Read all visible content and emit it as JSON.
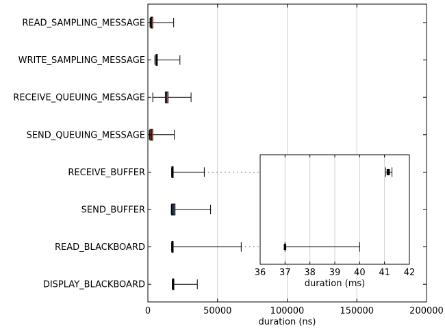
{
  "chart_data": [
    {
      "type": "box",
      "xlabel": "duration (ns)",
      "xlim": [
        0,
        200000
      ],
      "xticks": [
        0,
        50000,
        100000,
        150000,
        200000
      ],
      "grid": "vertical",
      "categories": [
        "READ_SAMPLING_MESSAGE",
        "WRITE_SAMPLING_MESSAGE",
        "RECEIVE_QUEUING_MESSAGE",
        "SEND_QUEUING_MESSAGE",
        "RECEIVE_BUFFER",
        "SEND_BUFFER",
        "READ_BLACKBOARD",
        "DISPLAY_BLACKBOARD"
      ],
      "boxes": [
        {
          "label": "READ_SAMPLING_MESSAGE",
          "whislo": 1500,
          "q1": 2000,
          "med": 2500,
          "q3": 3500,
          "whishi": 18500,
          "color": "#e3775f"
        },
        {
          "label": "WRITE_SAMPLING_MESSAGE",
          "whislo": 5000,
          "q1": 5800,
          "med": 6300,
          "q3": 6800,
          "whishi": 23000,
          "color": "#e3775f"
        },
        {
          "label": "RECEIVE_QUEUING_MESSAGE",
          "whislo": 3500,
          "q1": 12500,
          "med": 13500,
          "q3": 14500,
          "whishi": 31000,
          "color": "#e3775f"
        },
        {
          "label": "SEND_QUEUING_MESSAGE",
          "whislo": 1000,
          "q1": 1500,
          "med": 2500,
          "q3": 3500,
          "whishi": 19000,
          "color": "#e3775f"
        },
        {
          "label": "RECEIVE_BUFFER",
          "whislo": 17000,
          "q1": 17200,
          "med": 17500,
          "q3": 17800,
          "whishi": 40500,
          "color": "#4a5a78"
        },
        {
          "label": "SEND_BUFFER",
          "whislo": 16800,
          "q1": 17000,
          "med": 18000,
          "q3": 19500,
          "whishi": 45000,
          "color": "#4a5a78"
        },
        {
          "label": "READ_BLACKBOARD",
          "whislo": 17000,
          "q1": 17200,
          "med": 17500,
          "q3": 17800,
          "whishi": 67000,
          "color": "#4a5a78"
        },
        {
          "label": "DISPLAY_BLACKBOARD",
          "whislo": 17500,
          "q1": 17700,
          "med": 18000,
          "q3": 18300,
          "whishi": 35500,
          "color": "#4a5a78"
        }
      ]
    },
    {
      "type": "box",
      "role": "inset",
      "xlabel": "duration (ms)",
      "xlim": [
        36,
        42
      ],
      "xticks": [
        36,
        37,
        38,
        39,
        40,
        41,
        42
      ],
      "grid": "vertical",
      "boxes": [
        {
          "label": "RECEIVE_BUFFER",
          "whislo": 41.05,
          "q1": 41.1,
          "med": 41.15,
          "q3": 41.2,
          "whishi": 41.3
        },
        {
          "label": "READ_BLACKBOARD",
          "whislo": 37.0,
          "q1": 37.0,
          "med": 37.0,
          "q3": 37.0,
          "whishi": 40.0
        }
      ],
      "connections": [
        {
          "label": "RECEIVE_BUFFER",
          "from_ns": 40500,
          "to_ms": 41.05
        },
        {
          "label": "READ_BLACKBOARD",
          "from_ns": 67000,
          "to_ms": 37.0
        }
      ]
    }
  ]
}
